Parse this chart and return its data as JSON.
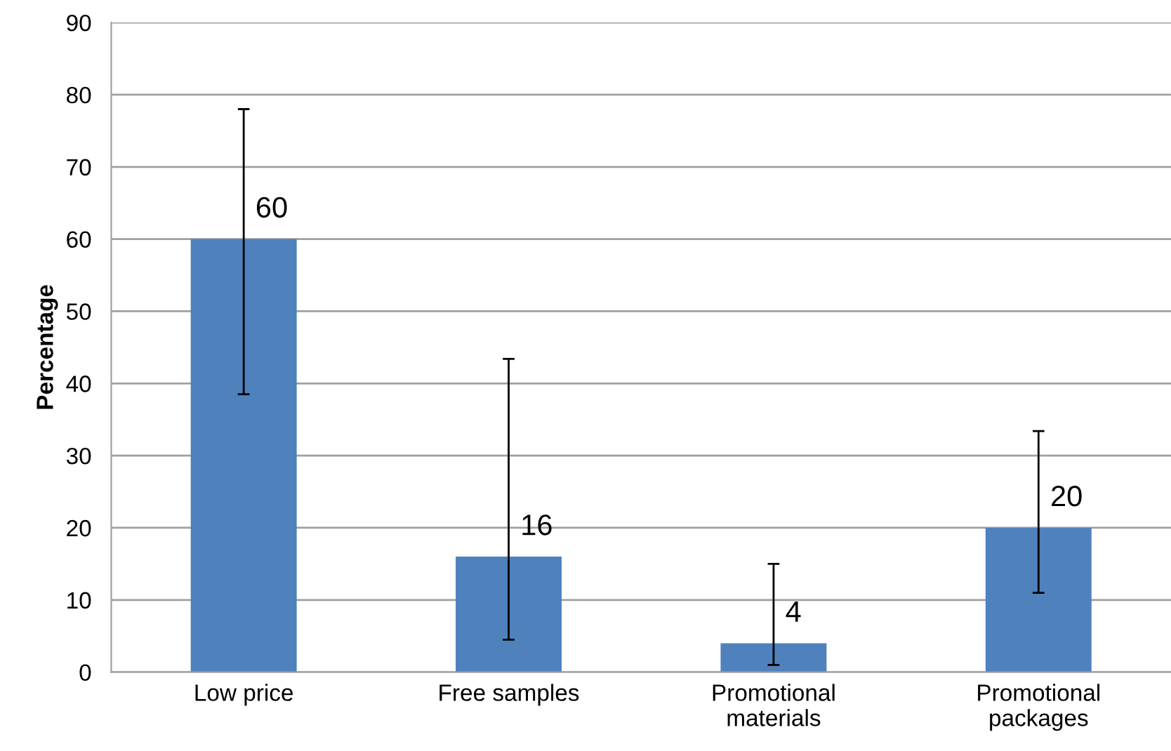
{
  "chart_data": {
    "type": "bar",
    "ylabel": "Percentage",
    "categories": [
      "Low price",
      "Free samples",
      "Promotional\nmaterials",
      "Promotional\npackages"
    ],
    "values": [
      60,
      16,
      4,
      20
    ],
    "errors": [
      [
        38.5,
        78
      ],
      [
        4.5,
        43.4
      ],
      [
        1,
        15
      ],
      [
        11,
        33.4
      ]
    ],
    "color": "#4f81bd",
    "data_labels": true,
    "ylim": [
      0,
      90
    ],
    "yticks": [
      0,
      10,
      20,
      30,
      40,
      50,
      60,
      70,
      80,
      90
    ],
    "grid": "y",
    "legend": false
  }
}
